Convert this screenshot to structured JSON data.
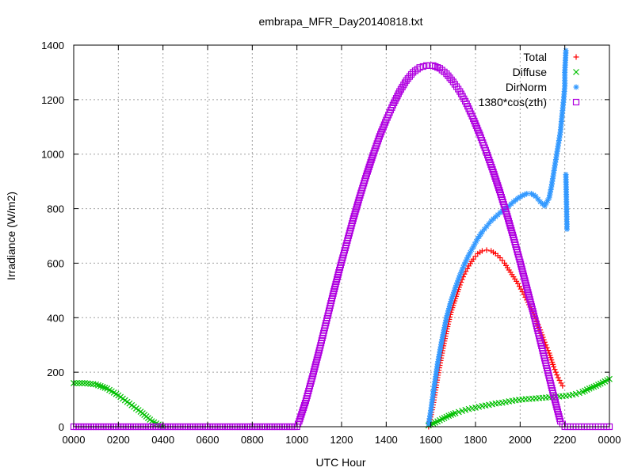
{
  "chart_data": {
    "type": "scatter",
    "title": "embrapa_MFR_Day20140818.txt",
    "xlabel": "UTC Hour",
    "ylabel": "Irradiance (W/m2)",
    "xlim": [
      0,
      24
    ],
    "ylim": [
      0,
      1400
    ],
    "x_ticks": [
      {
        "value": 0,
        "label": "0000"
      },
      {
        "value": 2,
        "label": "0200"
      },
      {
        "value": 4,
        "label": "0400"
      },
      {
        "value": 6,
        "label": "0600"
      },
      {
        "value": 8,
        "label": "0800"
      },
      {
        "value": 10,
        "label": "1000"
      },
      {
        "value": 12,
        "label": "1200"
      },
      {
        "value": 14,
        "label": "1400"
      },
      {
        "value": 16,
        "label": "1600"
      },
      {
        "value": 18,
        "label": "1800"
      },
      {
        "value": 20,
        "label": "2000"
      },
      {
        "value": 22,
        "label": "2200"
      },
      {
        "value": 24,
        "label": "0000"
      }
    ],
    "y_ticks": [
      0,
      200,
      400,
      600,
      800,
      1000,
      1200,
      1400
    ],
    "grid": true,
    "legend_position": "top-right",
    "series": [
      {
        "name": "Total",
        "color": "#ff0000",
        "marker": "plus",
        "x": [
          15.9,
          16.1,
          16.3,
          16.5,
          16.7,
          16.9,
          17.1,
          17.3,
          17.5,
          17.7,
          17.9,
          18.1,
          18.3,
          18.5,
          18.7,
          18.9,
          19.1,
          19.3,
          19.5,
          19.7,
          19.9,
          20.1,
          20.3,
          20.5,
          20.7,
          20.9,
          21.1,
          21.3,
          21.5,
          21.7,
          21.9
        ],
        "values": [
          0,
          80,
          180,
          270,
          350,
          420,
          470,
          520,
          560,
          590,
          615,
          635,
          645,
          648,
          645,
          635,
          620,
          600,
          575,
          550,
          525,
          495,
          465,
          430,
          395,
          355,
          310,
          270,
          220,
          180,
          150
        ]
      },
      {
        "name": "Diffuse",
        "color": "#00c000",
        "marker": "cross",
        "x": [
          0,
          0.5,
          1,
          1.5,
          2,
          2.5,
          3,
          3.5,
          4,
          15.9,
          16.2,
          16.5,
          16.8,
          17.1,
          17.4,
          17.7,
          18,
          18.3,
          18.6,
          18.9,
          19.2,
          19.5,
          19.8,
          20.1,
          20.4,
          20.7,
          21,
          21.3,
          21.6,
          21.9,
          22.2,
          22.5,
          22.8,
          23.1,
          23.4,
          23.7,
          24
        ],
        "values": [
          160,
          160,
          155,
          140,
          115,
          85,
          55,
          20,
          0,
          5,
          15,
          28,
          40,
          50,
          58,
          65,
          70,
          76,
          80,
          85,
          88,
          93,
          97,
          100,
          102,
          104,
          106,
          108,
          110,
          112,
          115,
          120,
          128,
          140,
          150,
          162,
          175
        ]
      },
      {
        "name": "DirNorm",
        "color": "#3399ff",
        "marker": "star",
        "x": [
          15.9,
          16.0,
          16.1,
          16.3,
          16.5,
          16.7,
          16.9,
          17.1,
          17.3,
          17.5,
          17.7,
          17.9,
          18.1,
          18.3,
          18.5,
          18.7,
          18.9,
          19.1,
          19.3,
          19.5,
          19.7,
          19.9,
          20.1,
          20.3,
          20.5,
          20.7,
          20.9,
          21.1,
          21.3,
          21.4,
          21.5,
          21.6,
          21.7,
          21.8,
          21.85,
          21.9,
          21.95,
          22.0,
          22.0,
          22.05,
          22.05,
          22.1
        ],
        "values": [
          10,
          60,
          120,
          230,
          320,
          400,
          460,
          510,
          555,
          595,
          630,
          660,
          690,
          715,
          735,
          755,
          770,
          785,
          798,
          810,
          825,
          838,
          848,
          855,
          855,
          845,
          825,
          810,
          840,
          880,
          930,
          980,
          1030,
          1080,
          1120,
          1160,
          1200,
          1250,
          1300,
          1380,
          925,
          725
        ]
      },
      {
        "name": "1380*cos(zth)",
        "color": "#b000e0",
        "marker": "square",
        "x": [
          0,
          1,
          2,
          3,
          4,
          5,
          6,
          7,
          8,
          9,
          10,
          10.1,
          10.4,
          10.7,
          11.0,
          11.3,
          11.6,
          11.9,
          12.2,
          12.5,
          12.8,
          13.1,
          13.4,
          13.7,
          14.0,
          14.3,
          14.6,
          14.9,
          15.2,
          15.5,
          15.8,
          16.1,
          16.4,
          16.7,
          17.0,
          17.3,
          17.6,
          17.9,
          18.2,
          18.5,
          18.8,
          19.1,
          19.4,
          19.7,
          20.0,
          20.3,
          20.6,
          20.9,
          21.2,
          21.5,
          21.8,
          22.0,
          22.5,
          23,
          23.5,
          24
        ],
        "values": [
          0,
          0,
          0,
          0,
          0,
          0,
          0,
          0,
          0,
          0,
          0,
          20,
          95,
          185,
          280,
          380,
          480,
          575,
          665,
          755,
          840,
          920,
          995,
          1065,
          1125,
          1180,
          1230,
          1270,
          1300,
          1318,
          1325,
          1325,
          1315,
          1295,
          1265,
          1230,
          1185,
          1130,
          1070,
          1005,
          935,
          860,
          780,
          695,
          605,
          510,
          415,
          315,
          215,
          115,
          20,
          0,
          0,
          0,
          0,
          0
        ]
      }
    ]
  }
}
